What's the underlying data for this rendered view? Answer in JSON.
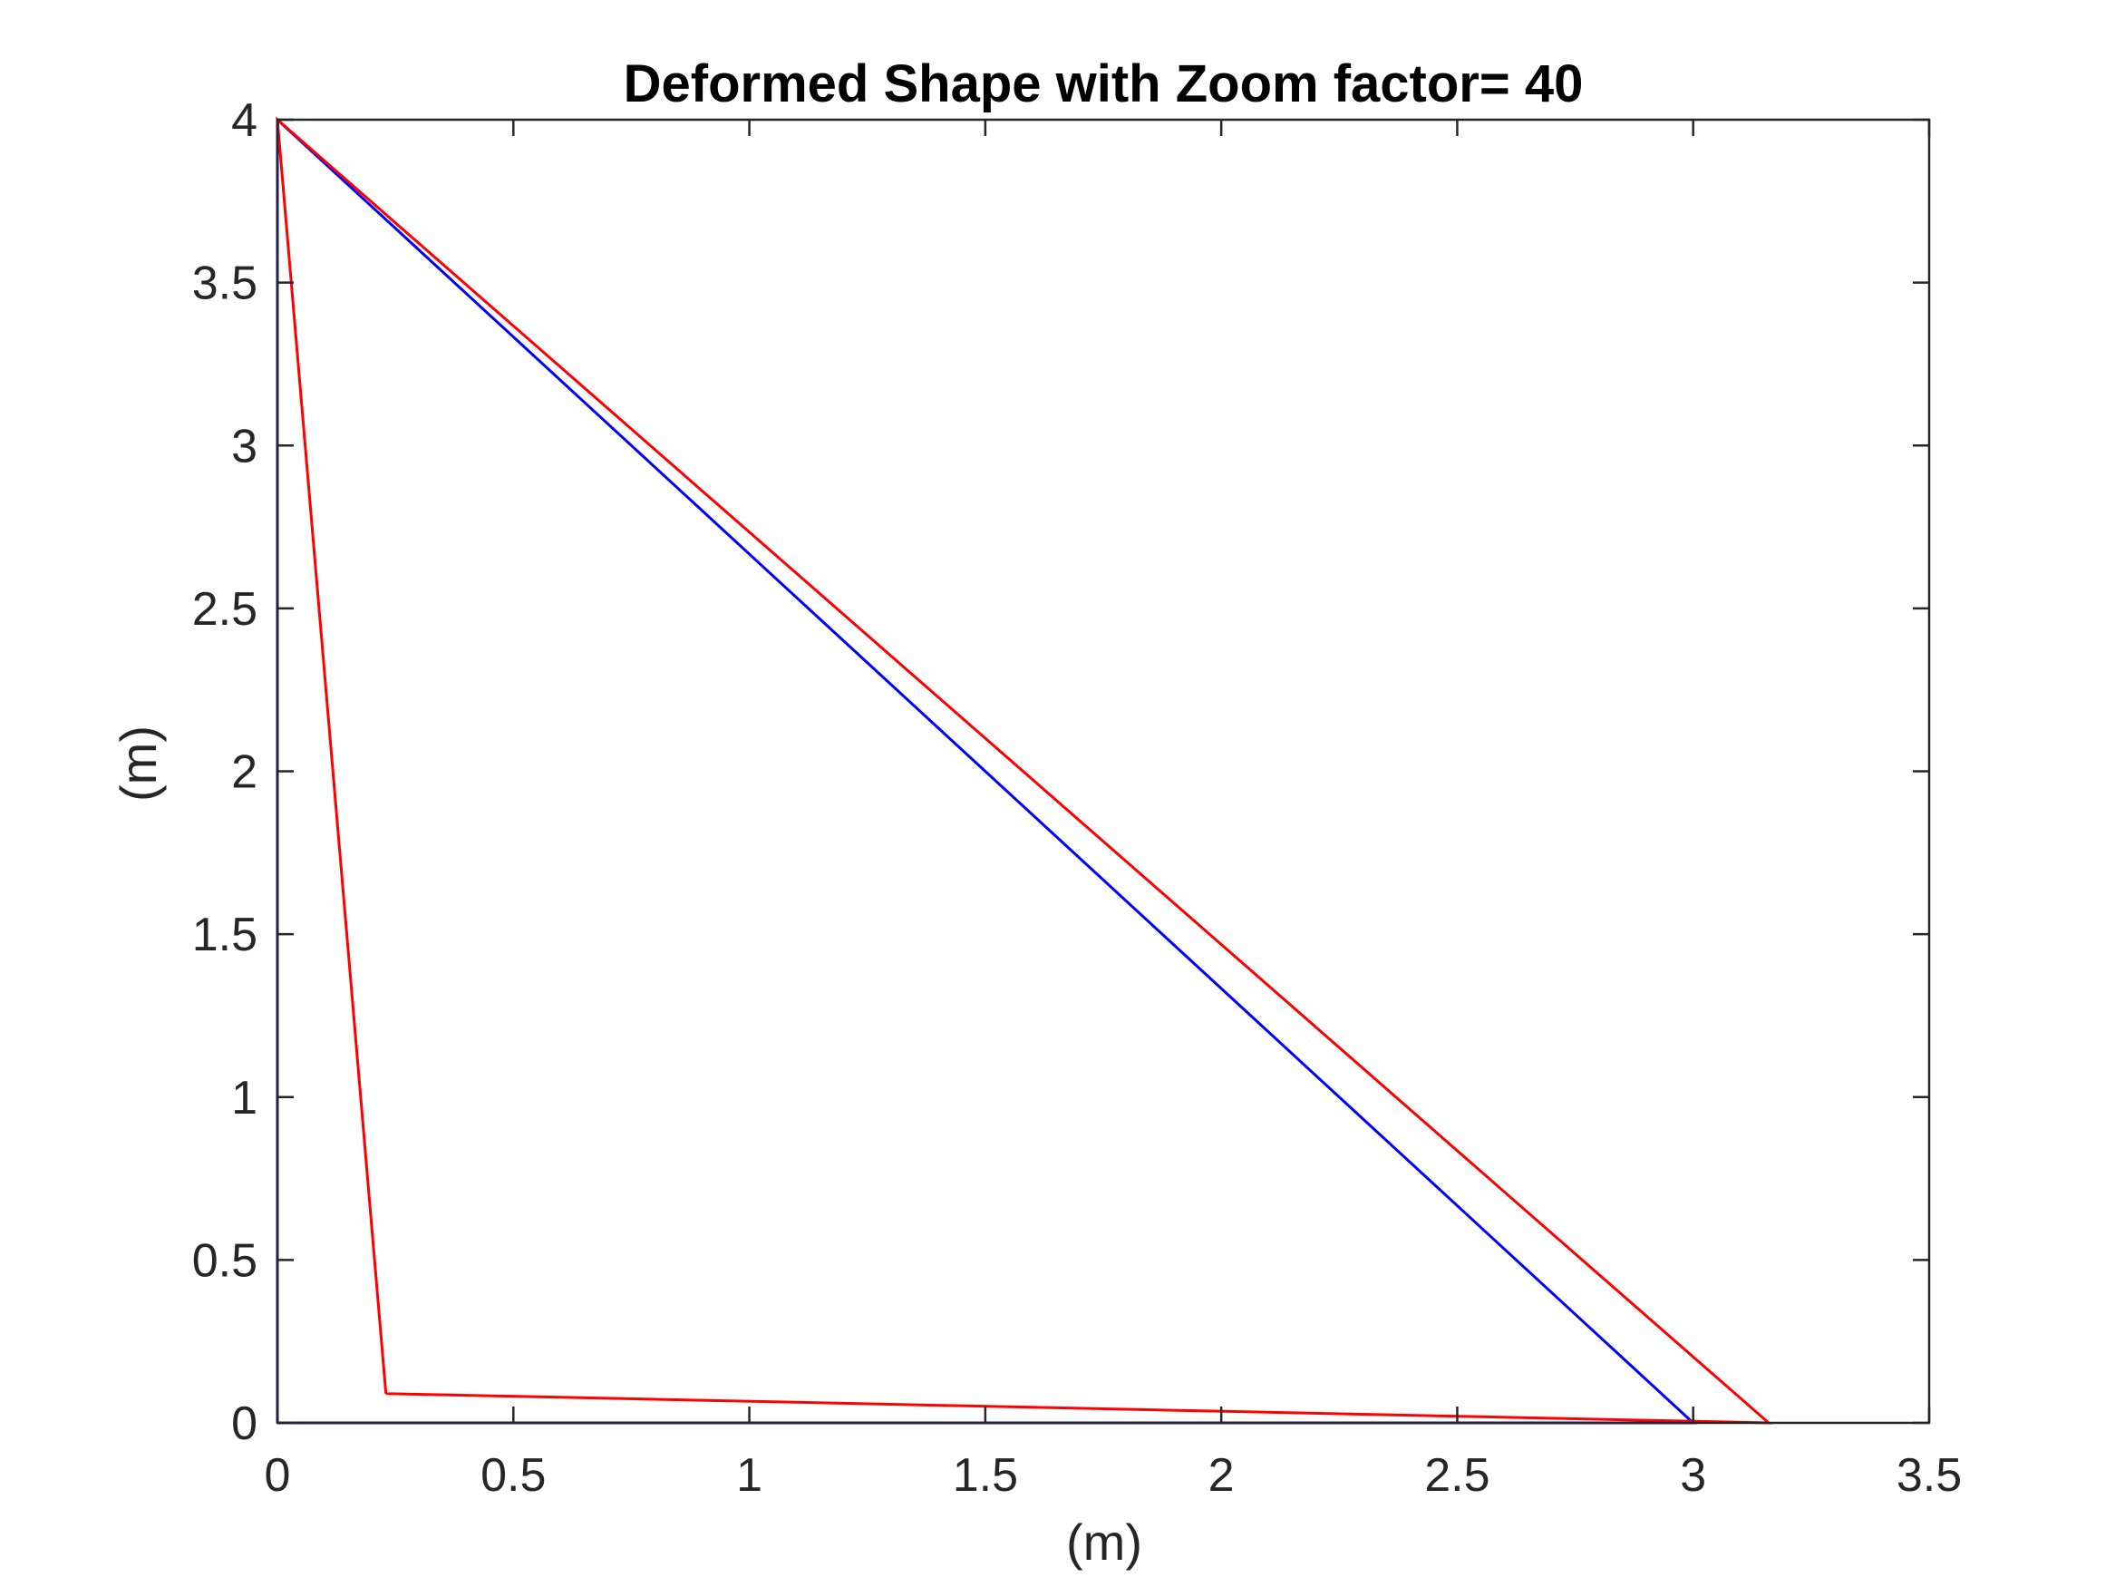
{
  "chart_data": {
    "type": "line",
    "title": "Deformed Shape with Zoom factor= 40",
    "xlabel": "(m)",
    "ylabel": "(m)",
    "xlim": [
      0,
      3.5
    ],
    "ylim": [
      0,
      4
    ],
    "xticks": [
      "0",
      "0.5",
      "1",
      "1.5",
      "2",
      "2.5",
      "3",
      "3.5"
    ],
    "yticks": [
      "0",
      "0.5",
      "1",
      "1.5",
      "2",
      "2.5",
      "3",
      "3.5",
      "4"
    ],
    "grid": false,
    "box": true,
    "series": [
      {
        "color": "#0000FF",
        "x": [
          0,
          3,
          0,
          0
        ],
        "y": [
          0,
          0,
          4,
          0
        ]
      },
      {
        "color": "#FF0000",
        "x": [
          0.23,
          3.16,
          0,
          0.23
        ],
        "y": [
          0.09,
          0,
          4,
          0.09
        ]
      }
    ]
  }
}
